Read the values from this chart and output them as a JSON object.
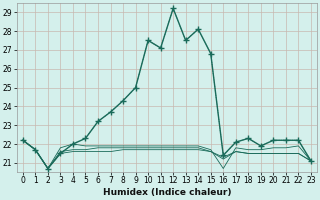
{
  "xlabel": "Humidex (Indice chaleur)",
  "bg_color": "#d4f0ec",
  "grid_color": "#c8b8b0",
  "line_color": "#1a6b5a",
  "ylim": [
    20.5,
    29.5
  ],
  "yticks": [
    21,
    22,
    23,
    24,
    25,
    26,
    27,
    28,
    29
  ],
  "x_ticks": [
    0,
    1,
    2,
    3,
    4,
    5,
    6,
    7,
    8,
    9,
    10,
    11,
    12,
    13,
    14,
    15,
    16,
    17,
    18,
    19,
    20,
    21,
    22,
    23
  ],
  "main_dotted": [
    22.2,
    21.7,
    20.7,
    21.5,
    22.0,
    22.3,
    23.2,
    23.7,
    24.3,
    25.0,
    27.5,
    27.1,
    29.2,
    27.5,
    28.1,
    26.8,
    21.4,
    22.1,
    22.3,
    21.9,
    22.2,
    22.2,
    22.2,
    21.1
  ],
  "main_solid": [
    22.2,
    21.7,
    20.7,
    21.5,
    22.0,
    22.3,
    23.2,
    23.7,
    24.3,
    25.0,
    27.5,
    27.1,
    29.2,
    27.5,
    28.1,
    26.8,
    21.4,
    22.1,
    22.3,
    21.9,
    22.2,
    22.2,
    22.2,
    21.1
  ],
  "line2": [
    22.2,
    21.7,
    20.7,
    21.5,
    21.6,
    21.6,
    21.6,
    21.6,
    21.7,
    21.7,
    21.7,
    21.7,
    21.7,
    21.7,
    21.7,
    21.6,
    21.2,
    21.6,
    21.5,
    21.5,
    21.5,
    21.5,
    21.5,
    21.1
  ],
  "line3": [
    22.2,
    21.7,
    20.7,
    21.6,
    21.7,
    21.7,
    21.8,
    21.8,
    21.8,
    21.8,
    21.8,
    21.8,
    21.8,
    21.8,
    21.8,
    21.6,
    21.3,
    21.6,
    21.5,
    21.5,
    21.5,
    21.5,
    21.5,
    21.1
  ],
  "line4": [
    22.2,
    21.7,
    20.7,
    21.8,
    22.0,
    21.9,
    21.9,
    21.9,
    21.9,
    21.9,
    21.9,
    21.9,
    21.9,
    21.9,
    21.9,
    21.7,
    20.7,
    21.8,
    21.7,
    21.7,
    21.8,
    21.8,
    21.9,
    21.1
  ],
  "tick_fontsize": 5.5,
  "xlabel_fontsize": 6.5
}
